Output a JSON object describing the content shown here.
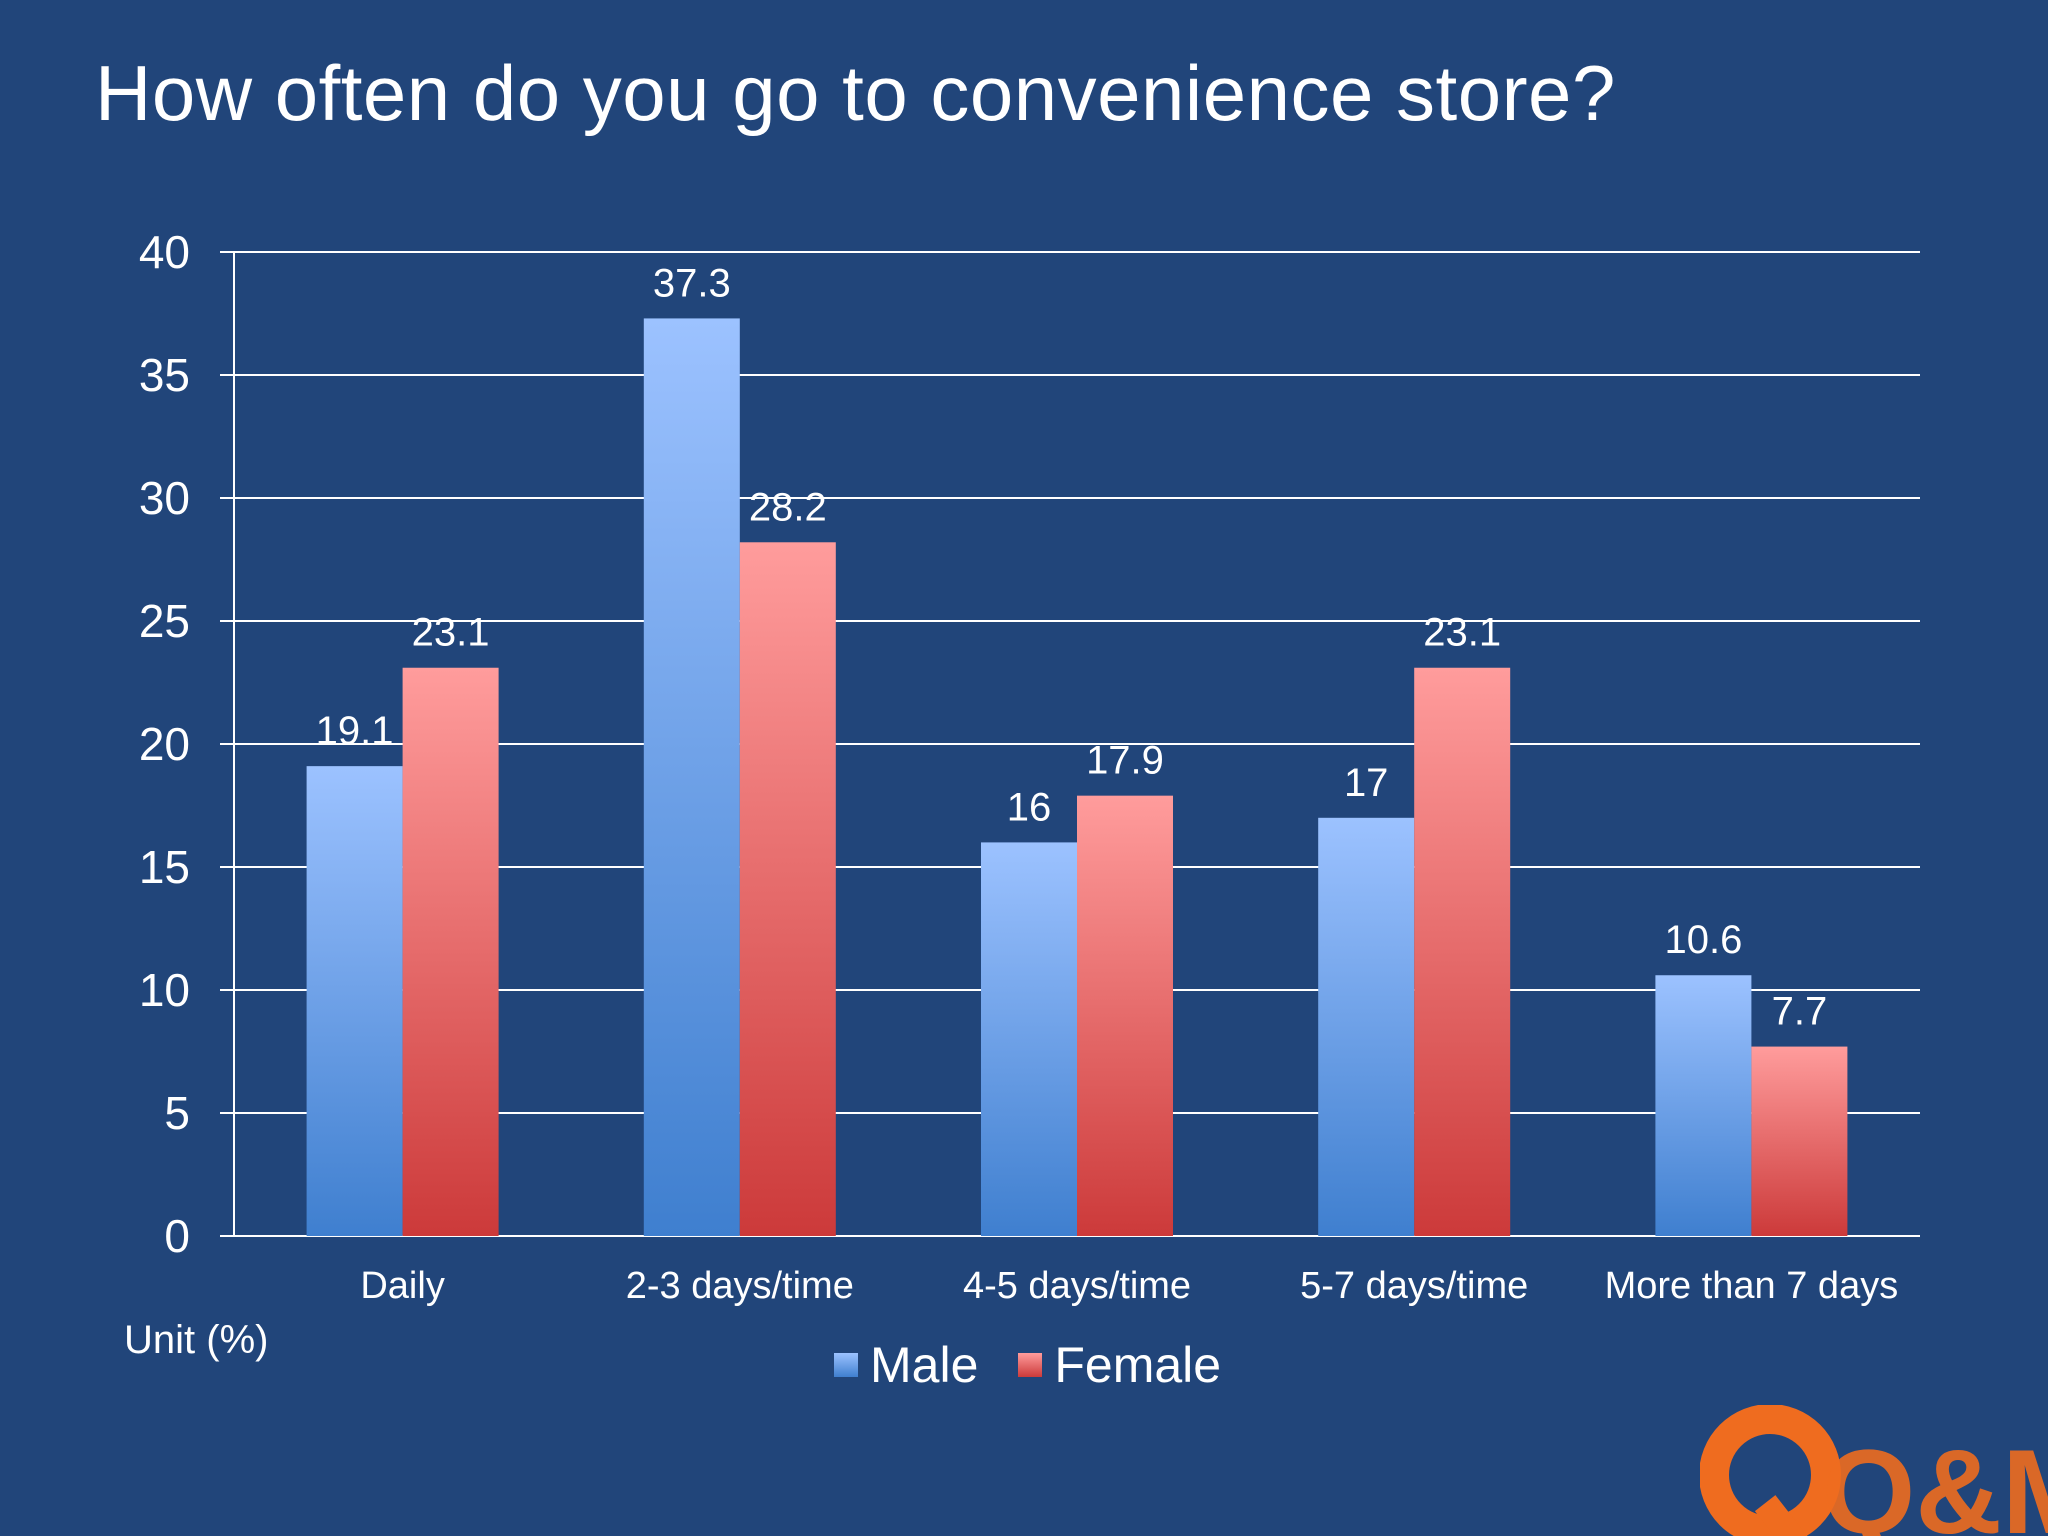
{
  "title": "How often do you go to convenience store?",
  "unit_label": "Unit (%)",
  "logo_text": "Q&Me",
  "colors": {
    "background": "#21457a",
    "male_top": "#9cc2ff",
    "male_bottom": "#3f7fcf",
    "female_top": "#ff9c9c",
    "female_bottom": "#cc3a3a",
    "logo": "#ef6c1f"
  },
  "chart_data": {
    "type": "bar",
    "title": "How often do you go to convenience store?",
    "xlabel": "",
    "ylabel": "",
    "ylim": [
      0,
      40
    ],
    "yticks": [
      0,
      5,
      10,
      15,
      20,
      25,
      30,
      35,
      40
    ],
    "grid": true,
    "legend": "bottom",
    "categories": [
      "Daily",
      "2-3 days/time",
      "4-5 days/time",
      "5-7 days/time",
      "More than 7 days"
    ],
    "series": [
      {
        "name": "Male",
        "values": [
          19.1,
          37.3,
          16,
          17,
          10.6
        ]
      },
      {
        "name": "Female",
        "values": [
          23.1,
          28.2,
          17.9,
          23.1,
          7.7
        ]
      }
    ]
  }
}
